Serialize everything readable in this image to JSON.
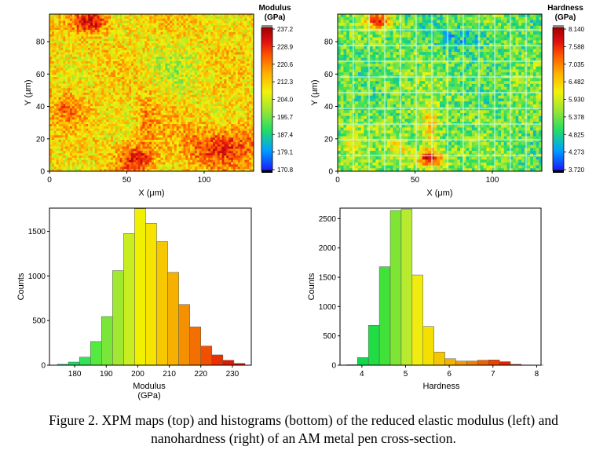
{
  "chart_data": [
    {
      "type": "heatmap",
      "id": "modulus-map",
      "xlabel": "X (μm)",
      "ylabel": "Y (μm)",
      "xlim": [
        0,
        132
      ],
      "ylim": [
        0,
        97
      ],
      "xticks": [
        0,
        50,
        100
      ],
      "yticks": [
        0,
        20,
        40,
        60,
        80
      ],
      "colorbar_title": [
        "Modulus",
        "(GPa)"
      ],
      "colorbar_ticks": [
        "237.2",
        "228.9",
        "220.6",
        "212.3",
        "204.0",
        "195.7",
        "187.4",
        "179.1",
        "170.8"
      ],
      "colormap": [
        "#1a1aff",
        "#00a0ff",
        "#22dd66",
        "#9be636",
        "#f2f20a",
        "#ffb000",
        "#ff5a00",
        "#e01010",
        "#a00000"
      ],
      "grid_lines": false
    },
    {
      "type": "heatmap",
      "id": "hardness-map",
      "xlabel": "X (μm)",
      "ylabel": "Y (μm)",
      "xlim": [
        0,
        132
      ],
      "ylim": [
        0,
        97
      ],
      "xticks": [
        0,
        50,
        100
      ],
      "yticks": [
        0,
        20,
        40,
        60,
        80
      ],
      "colorbar_title": [
        "Hardness",
        "(GPa)"
      ],
      "colorbar_ticks": [
        "8.140",
        "7.588",
        "7.035",
        "6.482",
        "5.930",
        "5.378",
        "4.825",
        "4.273",
        "3.720"
      ],
      "colormap": [
        "#1a1aff",
        "#00a0ff",
        "#22dd66",
        "#9be636",
        "#f2f20a",
        "#ffb000",
        "#ff5a00",
        "#e01010",
        "#a00000"
      ],
      "grid_lines": true
    },
    {
      "type": "bar",
      "id": "modulus-histogram",
      "xlabel": "Modulus",
      "xlabel2": "(GPa)",
      "ylabel": "Counts",
      "xlim": [
        172,
        236
      ],
      "ylim": [
        0,
        1760
      ],
      "xticks": [
        180,
        190,
        200,
        210,
        220,
        230
      ],
      "yticks": [
        0,
        500,
        1000,
        1500
      ],
      "bin_width": 3.5,
      "bin_starts": [
        174.5,
        178,
        181.5,
        185,
        188.5,
        192,
        195.5,
        199,
        202.5,
        206,
        209.5,
        213,
        216.5,
        220,
        223.5,
        227,
        230.5
      ],
      "values": [
        10,
        35,
        90,
        265,
        545,
        1060,
        1475,
        1755,
        1590,
        1385,
        1040,
        680,
        430,
        215,
        115,
        55,
        20
      ],
      "colors": [
        "#00e07a",
        "#18e066",
        "#30e455",
        "#55ea40",
        "#7ae63a",
        "#a0e832",
        "#c8ee22",
        "#f0f000",
        "#f6e400",
        "#f7c800",
        "#f5b000",
        "#f59000",
        "#f37000",
        "#f05000",
        "#ea3000",
        "#e01a00",
        "#d00f00"
      ]
    },
    {
      "type": "bar",
      "id": "hardness-histogram",
      "xlabel": "Hardness",
      "ylabel": "Counts",
      "xlim": [
        3.5,
        8.1
      ],
      "ylim": [
        0,
        2680
      ],
      "xticks": [
        4,
        5,
        6,
        7,
        8
      ],
      "yticks": [
        0,
        500,
        1000,
        1500,
        2000,
        2500
      ],
      "bin_width": 0.25,
      "bin_starts": [
        3.65,
        3.9,
        4.15,
        4.4,
        4.65,
        4.9,
        5.15,
        5.4,
        5.65,
        5.9,
        6.15,
        6.4,
        6.65,
        6.9,
        7.15,
        7.4,
        7.65,
        7.9
      ],
      "values": [
        8,
        130,
        680,
        1680,
        2640,
        2665,
        1540,
        660,
        225,
        110,
        70,
        70,
        85,
        90,
        60,
        15,
        4,
        2
      ],
      "colors": [
        "#00cc55",
        "#10d84a",
        "#20dc45",
        "#40e23a",
        "#7ee535",
        "#b8ea30",
        "#f0ec10",
        "#f4e000",
        "#f4c800",
        "#f5b200",
        "#f59800",
        "#f28000",
        "#ee6200",
        "#ea4400",
        "#e22400",
        "#d81400",
        "#cc0a00",
        "#c00000"
      ]
    }
  ],
  "caption": {
    "line1": "Figure 2. XPM maps (top) and histograms (bottom) of the reduced elastic modulus (left) and",
    "line2": "nanohardness (right) of an AM metal pen cross-section."
  }
}
